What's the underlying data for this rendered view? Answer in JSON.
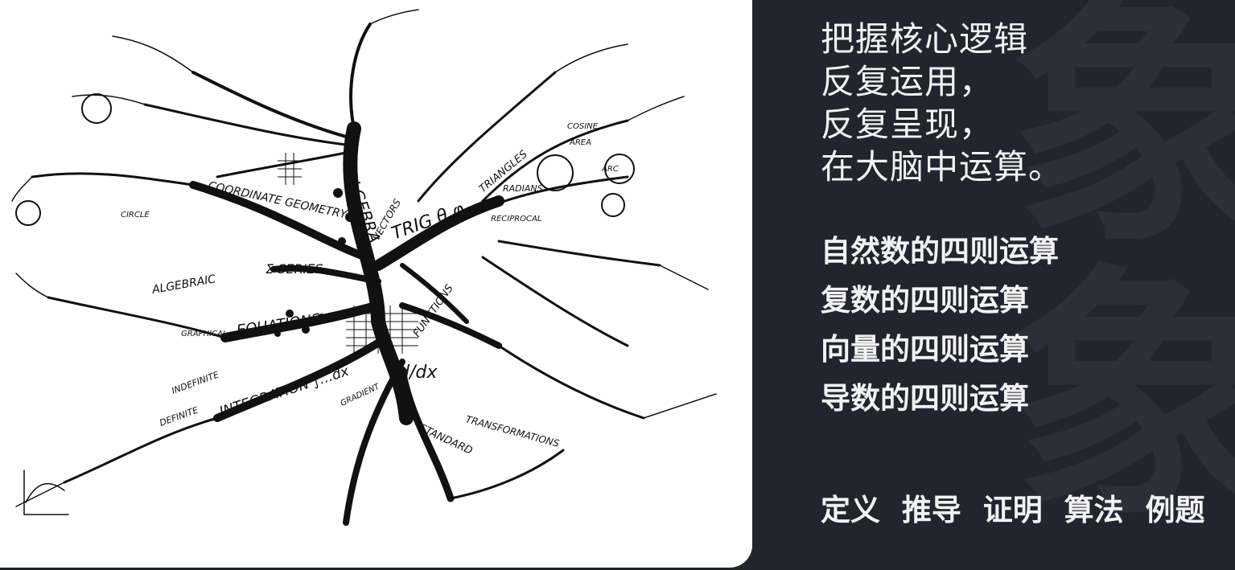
{
  "mind_map": {
    "center_labels": {
      "algebra": "ALGEBRA",
      "trig": "TRIG θ φ",
      "calculus": "d/dx",
      "coordinate_geometry": "COORDINATE GEOMETRY",
      "series": "Σ SERIES",
      "equations": "EQUATIONS",
      "integration": "INTEGRATION ∫…dx",
      "algebraic": "ALGEBRAIC",
      "vectors": "VECTORS",
      "triangles": "TRIANGLES",
      "functions": "FUNCTIONS",
      "standard": "STANDARD",
      "transformations": "TRANSFORMATIONS",
      "indefinite": "INDEFINITE",
      "definite": "DEFINITE",
      "radians": "RADIANS",
      "arc": "ARC",
      "area": "AREA",
      "cosine": "COSINE",
      "graphical": "GRAPHICAL",
      "gradient": "GRADIENT",
      "circle": "CIRCLE",
      "reciprocal": "RECIPROCAL"
    }
  },
  "motto": {
    "line1": "把握核心逻辑",
    "line2": "反复运用，",
    "line3": "反复呈现，",
    "line4": "在大脑中运算。"
  },
  "operations": {
    "item1": "自然数的四则运算",
    "item2": "复数的四则运算",
    "item3": "向量的四则运算",
    "item4": "导数的四则运算"
  },
  "methods": {
    "m1": "定义",
    "m2": "推导",
    "m3": "证明",
    "m4": "算法",
    "m5": "例题"
  },
  "colors": {
    "background": "#22252d",
    "text": "#f2f2f2",
    "panel": "#ffffff"
  }
}
